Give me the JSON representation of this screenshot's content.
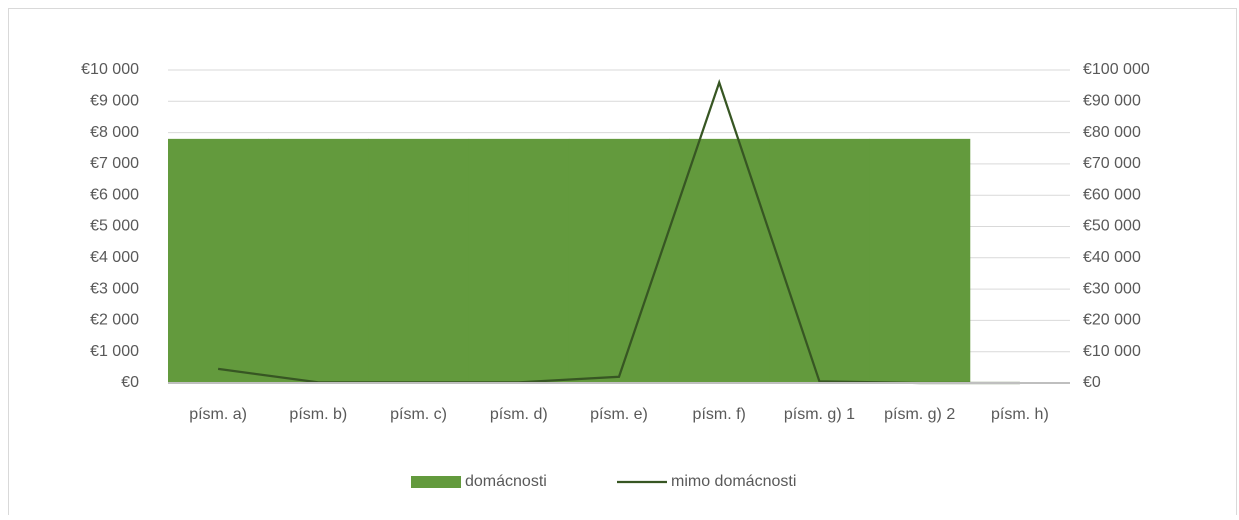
{
  "chart_data": {
    "type": "bar_line",
    "categories": [
      "písm. a)",
      "písm. b)",
      "písm. c)",
      "písm. d)",
      "písm. e)",
      "písm. f)",
      "písm. g) 1",
      "písm. g) 2",
      "písm. h)"
    ],
    "series": [
      {
        "name": "domácnosti",
        "color": "#639a3d",
        "type": "bar",
        "values": [
          7800,
          7800,
          7800,
          7800,
          7800,
          7800,
          7800,
          7800,
          0
        ]
      },
      {
        "name": "mimo domácnosti",
        "color": "#375623",
        "type": "line",
        "axis": "y2",
        "values": [
          4500,
          200,
          200,
          200,
          2000,
          96000,
          500,
          0,
          0
        ]
      }
    ],
    "ylim": [
      0,
      10000
    ],
    "yticks": [
      {
        "value": 0,
        "label": "€0"
      },
      {
        "value": 1000,
        "label": "€1 000"
      },
      {
        "value": 2000,
        "label": "€2 000"
      },
      {
        "value": 3000,
        "label": "€3 000"
      },
      {
        "value": 4000,
        "label": "€4 000"
      },
      {
        "value": 5000,
        "label": "€5 000"
      },
      {
        "value": 6000,
        "label": "€6 000"
      },
      {
        "value": 7000,
        "label": "€7 000"
      },
      {
        "value": 8000,
        "label": "€8 000"
      },
      {
        "value": 9000,
        "label": "€9 000"
      },
      {
        "value": 10000,
        "label": "€10 000"
      }
    ],
    "y2lim": [
      0,
      100000
    ],
    "y2ticks": [
      {
        "value": 0,
        "label": "€0"
      },
      {
        "value": 10000,
        "label": "€10 000"
      },
      {
        "value": 20000,
        "label": "€20 000"
      },
      {
        "value": 30000,
        "label": "€30 000"
      },
      {
        "value": 40000,
        "label": "€40 000"
      },
      {
        "value": 50000,
        "label": "€50 000"
      },
      {
        "value": 60000,
        "label": "€60 000"
      },
      {
        "value": 70000,
        "label": "€70 000"
      },
      {
        "value": 80000,
        "label": "€80 000"
      },
      {
        "value": 90000,
        "label": "€90 000"
      },
      {
        "value": 100000,
        "label": "€100 000"
      }
    ],
    "grid": true,
    "legend": "bottom"
  }
}
